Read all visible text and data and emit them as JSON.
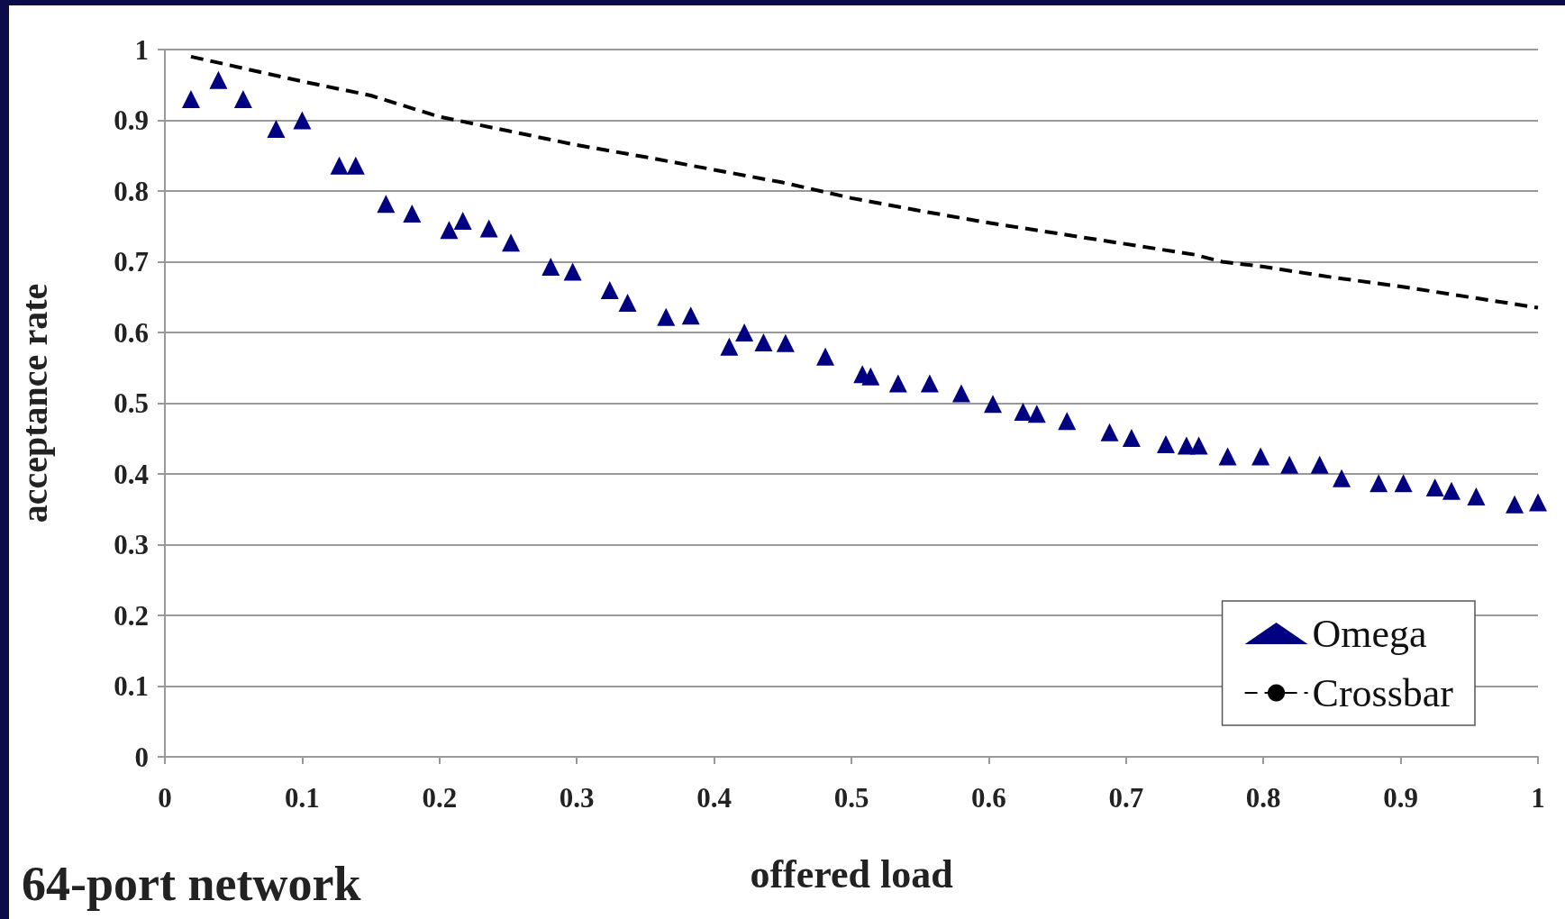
{
  "chart_data": {
    "type": "scatter",
    "xlabel": "offered load",
    "ylabel": "acceptance rate",
    "annotations": [
      "64-port network"
    ],
    "xlim": [
      0,
      1
    ],
    "ylim": [
      0,
      1
    ],
    "xticks": [
      0,
      0.1,
      0.2,
      0.3,
      0.4,
      0.5,
      0.6,
      0.7,
      0.8,
      0.9,
      1
    ],
    "yticks": [
      0,
      0.1,
      0.2,
      0.3,
      0.4,
      0.5,
      0.6,
      0.7,
      0.8,
      0.9,
      1
    ],
    "grid": "y",
    "legend": "bottom right",
    "series": [
      {
        "name": "Omega",
        "marker": "triangle",
        "color": "#000080",
        "x": [
          0.019,
          0.039,
          0.057,
          0.081,
          0.1,
          0.127,
          0.139,
          0.161,
          0.18,
          0.207,
          0.217,
          0.236,
          0.252,
          0.281,
          0.297,
          0.324,
          0.337,
          0.365,
          0.383,
          0.411,
          0.422,
          0.436,
          0.452,
          0.481,
          0.508,
          0.514,
          0.534,
          0.557,
          0.58,
          0.603,
          0.625,
          0.635,
          0.657,
          0.688,
          0.704,
          0.729,
          0.744,
          0.753,
          0.774,
          0.798,
          0.819,
          0.841,
          0.857,
          0.884,
          0.902,
          0.925,
          0.937,
          0.955,
          0.983,
          1.0
        ],
        "values": [
          0.93,
          0.957,
          0.93,
          0.888,
          0.9,
          0.836,
          0.836,
          0.782,
          0.768,
          0.745,
          0.758,
          0.747,
          0.727,
          0.693,
          0.686,
          0.66,
          0.642,
          0.622,
          0.624,
          0.58,
          0.6,
          0.586,
          0.585,
          0.566,
          0.541,
          0.538,
          0.528,
          0.528,
          0.514,
          0.499,
          0.488,
          0.485,
          0.475,
          0.459,
          0.451,
          0.442,
          0.44,
          0.44,
          0.425,
          0.425,
          0.413,
          0.413,
          0.394,
          0.387,
          0.387,
          0.381,
          0.376,
          0.368,
          0.357,
          0.36
        ]
      },
      {
        "name": "Crossbar",
        "type": "line",
        "marker": "none",
        "line_style": "dashed",
        "color": "#000000",
        "x": [
          0.019,
          0.1,
          0.15,
          0.2,
          0.25,
          0.3,
          0.35,
          0.4,
          0.45,
          0.5,
          0.55,
          0.6,
          0.65,
          0.7,
          0.75,
          0.77,
          0.8,
          0.85,
          0.9,
          0.95,
          1.0
        ],
        "values": [
          0.99,
          0.955,
          0.935,
          0.905,
          0.885,
          0.865,
          0.848,
          0.83,
          0.812,
          0.79,
          0.772,
          0.755,
          0.74,
          0.725,
          0.71,
          0.7,
          0.693,
          0.678,
          0.665,
          0.65,
          0.635
        ]
      }
    ]
  }
}
